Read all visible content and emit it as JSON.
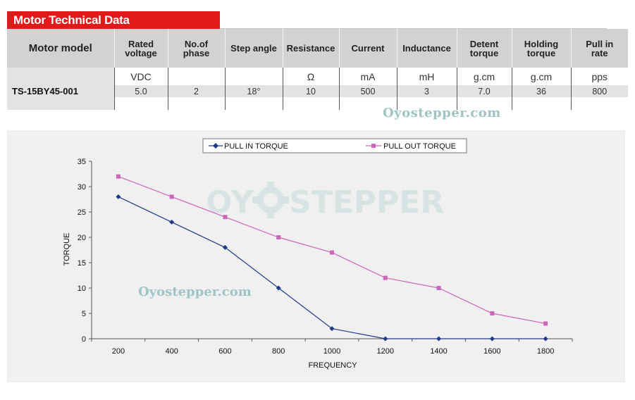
{
  "section_title": "Motor Technical Data",
  "table": {
    "columns": [
      {
        "header": [
          "Motor model"
        ],
        "unit": "",
        "value": "TS-15BY45-001"
      },
      {
        "header": [
          "Rated",
          "voltage"
        ],
        "unit": "VDC",
        "value": "5.0"
      },
      {
        "header": [
          "No.of",
          "phase"
        ],
        "unit": "",
        "value": "2"
      },
      {
        "header": [
          "Step angle"
        ],
        "unit": "",
        "value": "18°"
      },
      {
        "header": [
          "Resistance"
        ],
        "unit": "Ω",
        "value": "10"
      },
      {
        "header": [
          "Current"
        ],
        "unit": "mA",
        "value": "500"
      },
      {
        "header": [
          "Inductance"
        ],
        "unit": "mH",
        "value": "3"
      },
      {
        "header": [
          "Detent",
          "torque"
        ],
        "unit": "g.cm",
        "value": "7.0"
      },
      {
        "header": [
          "Holding",
          "torque"
        ],
        "unit": "g.cm",
        "value": "36"
      },
      {
        "header": [
          "Pull in",
          "rate"
        ],
        "unit": "pps",
        "value": "800"
      }
    ]
  },
  "watermarks": {
    "text": "Oyostepper.com",
    "logo_left": "OY",
    "logo_right": "STEPPER"
  },
  "colors": {
    "title_bg": "#e01a1a",
    "pull_in": "#1f3a8a",
    "pull_out": "#cc66bb",
    "watermark": "#9ec4c4"
  },
  "chart_data": {
    "type": "line",
    "title": "",
    "xlabel": "FREQUENCY",
    "ylabel": "TORQUE",
    "x": [
      200,
      400,
      600,
      800,
      1000,
      1200,
      1400,
      1600,
      1800
    ],
    "ylim": [
      0,
      35
    ],
    "yticks": [
      0,
      5,
      10,
      15,
      20,
      25,
      30,
      35
    ],
    "grid": false,
    "legend": "top",
    "series": [
      {
        "name": "PULL IN TORQUE",
        "marker": "diamond",
        "values": [
          28,
          23,
          18,
          10,
          2,
          0,
          0,
          0,
          0
        ]
      },
      {
        "name": "PULL OUT TORQUE",
        "marker": "square",
        "values": [
          32,
          28,
          24,
          20,
          17,
          12,
          10,
          5,
          3
        ]
      }
    ]
  }
}
